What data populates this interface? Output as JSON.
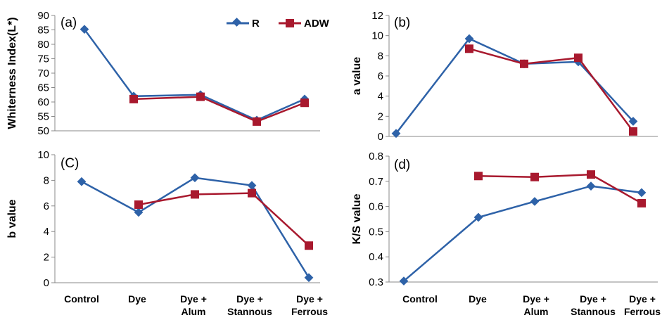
{
  "chart_data": [
    {
      "type": "line",
      "panel_label": "(a)",
      "ylabel": "Whiterness Index(L*)",
      "ylim": [
        50,
        90
      ],
      "yticks": [
        50,
        55,
        60,
        65,
        70,
        75,
        80,
        85,
        90
      ],
      "categories": [
        "Control",
        "Dye",
        "Dye + Alum",
        "Dye + Stannous",
        "Dye + Ferrous"
      ],
      "series": [
        {
          "name": "R",
          "values": [
            85.2,
            62.0,
            62.5,
            53.7,
            61.0
          ]
        },
        {
          "name": "ADW",
          "values": [
            null,
            61.0,
            61.8,
            53.2,
            59.7
          ]
        }
      ],
      "legend": "top-right"
    },
    {
      "type": "line",
      "panel_label": "(b)",
      "ylabel": "a value",
      "ylim": [
        0,
        12
      ],
      "yticks": [
        0,
        2,
        4,
        6,
        8,
        10,
        12
      ],
      "categories": [
        "Control",
        "Dye",
        "Dye + Alum",
        "Dye + Stannous",
        "Dye + Ferrous"
      ],
      "series": [
        {
          "name": "R",
          "values": [
            0.3,
            9.7,
            7.2,
            7.4,
            1.5
          ]
        },
        {
          "name": "ADW",
          "values": [
            null,
            8.7,
            7.2,
            7.8,
            0.5
          ]
        }
      ]
    },
    {
      "type": "line",
      "panel_label": "(C)",
      "ylabel": "b value",
      "ylim": [
        0,
        10
      ],
      "yticks": [
        0,
        2,
        4,
        6,
        8,
        10
      ],
      "categories": [
        "Control",
        "Dye",
        "Dye + Alum",
        "Dye + Stannous",
        "Dye + Ferrous"
      ],
      "series": [
        {
          "name": "R",
          "values": [
            7.9,
            5.5,
            8.2,
            7.6,
            0.4
          ]
        },
        {
          "name": "ADW",
          "values": [
            null,
            6.1,
            6.9,
            7.0,
            2.9
          ]
        }
      ]
    },
    {
      "type": "line",
      "panel_label": "(d)",
      "ylabel": "K/S value",
      "ylim": [
        0.3,
        0.8
      ],
      "yticks": [
        0.3,
        0.4,
        0.5,
        0.6,
        0.7,
        0.8
      ],
      "categories": [
        "Control",
        "Dye",
        "Dye + Alum",
        "Dye + Stannous",
        "Dye + Ferrous"
      ],
      "series": [
        {
          "name": "R",
          "values": [
            0.304,
            0.557,
            0.62,
            0.681,
            0.655
          ]
        },
        {
          "name": "ADW",
          "values": [
            null,
            0.721,
            0.717,
            0.727,
            0.613
          ]
        }
      ]
    }
  ],
  "x_category_lines": [
    [
      "Control"
    ],
    [
      "Dye"
    ],
    [
      "Dye +",
      "Alum"
    ],
    [
      "Dye +",
      "Stannous"
    ],
    [
      "Dye +",
      "Ferrous"
    ]
  ],
  "legend": {
    "items": [
      {
        "label": "R",
        "color": "#2E62A8",
        "marker": "diamond"
      },
      {
        "label": "ADW",
        "color": "#A8192E",
        "marker": "square"
      }
    ]
  },
  "colors": {
    "R": "#2E62A8",
    "ADW": "#A8192E",
    "axis": "#888888"
  }
}
